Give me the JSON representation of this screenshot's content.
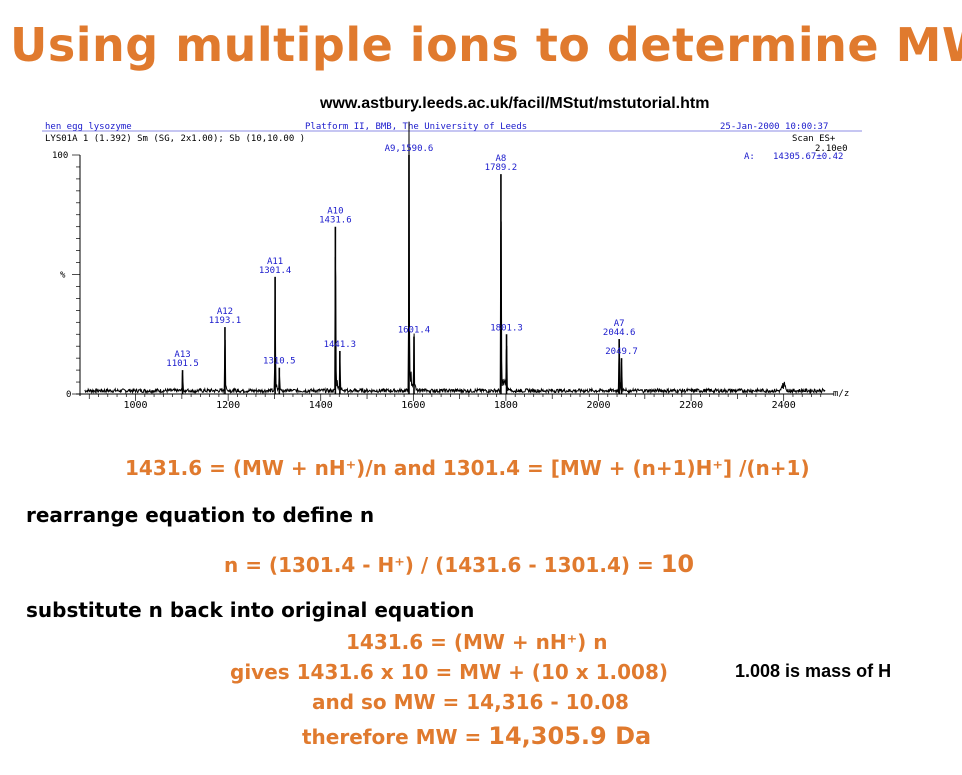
{
  "slide": {
    "title": "Using multiple ions to determine MW",
    "url": "www.astbury.leeds.ac.uk/facil/MStut/mstutorial.htm"
  },
  "header": {
    "sample": "hen egg lysozyme",
    "lab": "Platform II, BMB, The University of Leeds",
    "date": "25-Jan-2000 10:00:37",
    "file": "LYS01A 1 (1.392) Sm (SG, 2x1.00); Sb (10,10.00 )",
    "scan": "Scan ES+",
    "intensity": "2.10e0",
    "mass_label": "A:",
    "mass_value": "14305.67±0.42"
  },
  "chart_data": {
    "type": "line",
    "xlabel": "m/z",
    "ylabel": "%",
    "xlim": [
      880,
      2500
    ],
    "ylim": [
      0,
      100
    ],
    "x_ticks": [
      1000,
      1200,
      1400,
      1600,
      1800,
      2000,
      2200,
      2400
    ],
    "y_ticks": [
      "0",
      "%",
      "100"
    ],
    "peaks": [
      {
        "x": 1101.5,
        "y": 10,
        "label": "A13\n1101.5"
      },
      {
        "x": 1193.1,
        "y": 28,
        "label": "A12\n1193.1"
      },
      {
        "x": 1301.4,
        "y": 49,
        "label": "A11\n1301.4"
      },
      {
        "x": 1310.5,
        "y": 11,
        "label": "1310.5"
      },
      {
        "x": 1431.6,
        "y": 70,
        "label": "A10\n1431.6"
      },
      {
        "x": 1441.3,
        "y": 18,
        "label": "1441.3"
      },
      {
        "x": 1590.6,
        "y": 100,
        "label": "A9,1590.6"
      },
      {
        "x": 1601.4,
        "y": 24,
        "label": "1601.4"
      },
      {
        "x": 1789.2,
        "y": 92,
        "label": "A8\n1789.2"
      },
      {
        "x": 1801.3,
        "y": 25,
        "label": "1801.3"
      },
      {
        "x": 2044.6,
        "y": 23,
        "label": "A7\n2044.6"
      },
      {
        "x": 2049.7,
        "y": 15,
        "label": "2049.7"
      }
    ]
  },
  "equations": {
    "line1": "1431.6 = (MW + nH⁺)/n and 1301.4 = [MW + (n+1)H⁺] /(n+1)",
    "heading1": "rearrange equation to define n",
    "line2": "n = (1301.4 - H⁺) / (1431.6 - 1301.4) = ",
    "line2_result": "10",
    "heading2": "substitute n back into original equation",
    "line3": "1431.6 = (MW + nH⁺) n",
    "line4": "gives 1431.6 x 10 = MW + (10 x 1.008)",
    "note": "1.008 is mass of H",
    "line5": "and so MW = 14,316 - 10.08",
    "line6_prefix": "therefore MW = ",
    "line6_result": "14,305.9 Da"
  }
}
